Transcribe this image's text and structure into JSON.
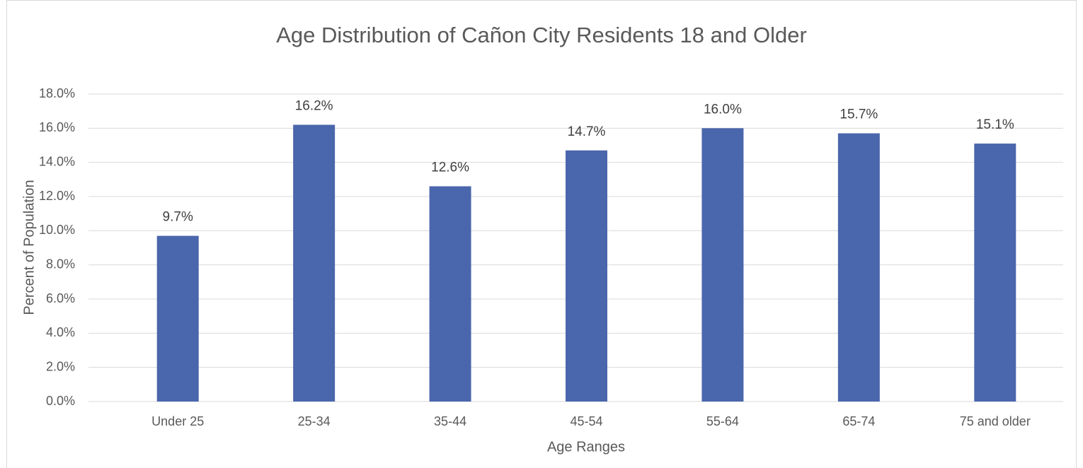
{
  "chart_data": {
    "type": "bar",
    "title": "Age Distribution of Cañon City Residents 18 and Older",
    "x_label": "Age Ranges",
    "y_label": "Percent of Population",
    "categories": [
      "Under 25",
      "25-34",
      "35-44",
      "45-54",
      "55-64",
      "65-74",
      "75 and older"
    ],
    "values": [
      9.7,
      16.2,
      12.6,
      14.7,
      16.0,
      15.7,
      15.1
    ],
    "value_labels": [
      "9.7%",
      "16.2%",
      "12.6%",
      "14.7%",
      "16.0%",
      "15.7%",
      "15.1%"
    ],
    "color": "#4a66ac",
    "ylim": [
      0,
      18
    ],
    "yticks": [
      {
        "value": 0,
        "label": "0.0%"
      },
      {
        "value": 2,
        "label": "2.0%"
      },
      {
        "value": 4,
        "label": "4.0%"
      },
      {
        "value": 6,
        "label": "6.0%"
      },
      {
        "value": 8,
        "label": "8.0%"
      },
      {
        "value": 10,
        "label": "10.0%"
      },
      {
        "value": 12,
        "label": "12.0%"
      },
      {
        "value": 14,
        "label": "14.0%"
      },
      {
        "value": 16,
        "label": "16.0%"
      },
      {
        "value": 18,
        "label": "18.0%"
      }
    ],
    "grid": true
  }
}
